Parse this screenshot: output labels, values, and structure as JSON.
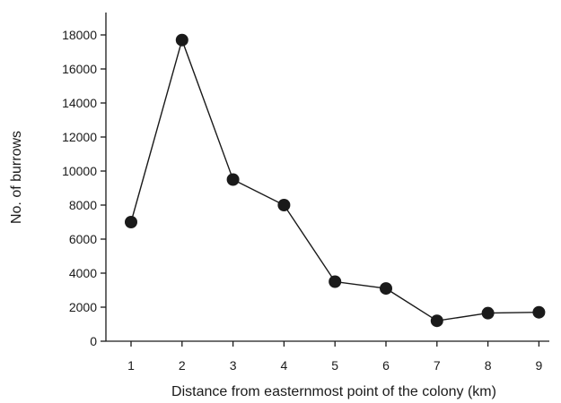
{
  "chart_data": {
    "type": "line",
    "title": "",
    "xlabel": "Distance from easternmost point of the colony (km)",
    "ylabel": "No. of burrows",
    "x": [
      1,
      2,
      3,
      4,
      5,
      6,
      7,
      8,
      9
    ],
    "series": [
      {
        "values": [
          7000,
          17700,
          9500,
          8000,
          3500,
          3100,
          1200,
          1650,
          1700
        ]
      }
    ],
    "xticks": [
      "1",
      "2",
      "3",
      "4",
      "5",
      "6",
      "7",
      "8",
      "9"
    ],
    "yticks": [
      "0",
      "2000",
      "4000",
      "6000",
      "8000",
      "10000",
      "12000",
      "14000",
      "16000",
      "18000"
    ],
    "ylim": [
      0,
      19000
    ],
    "grid": false,
    "legend": "none",
    "colors": {
      "line": "#1a1a1a",
      "marker": "#1a1a1a",
      "axis": "#1a1a1a"
    }
  }
}
